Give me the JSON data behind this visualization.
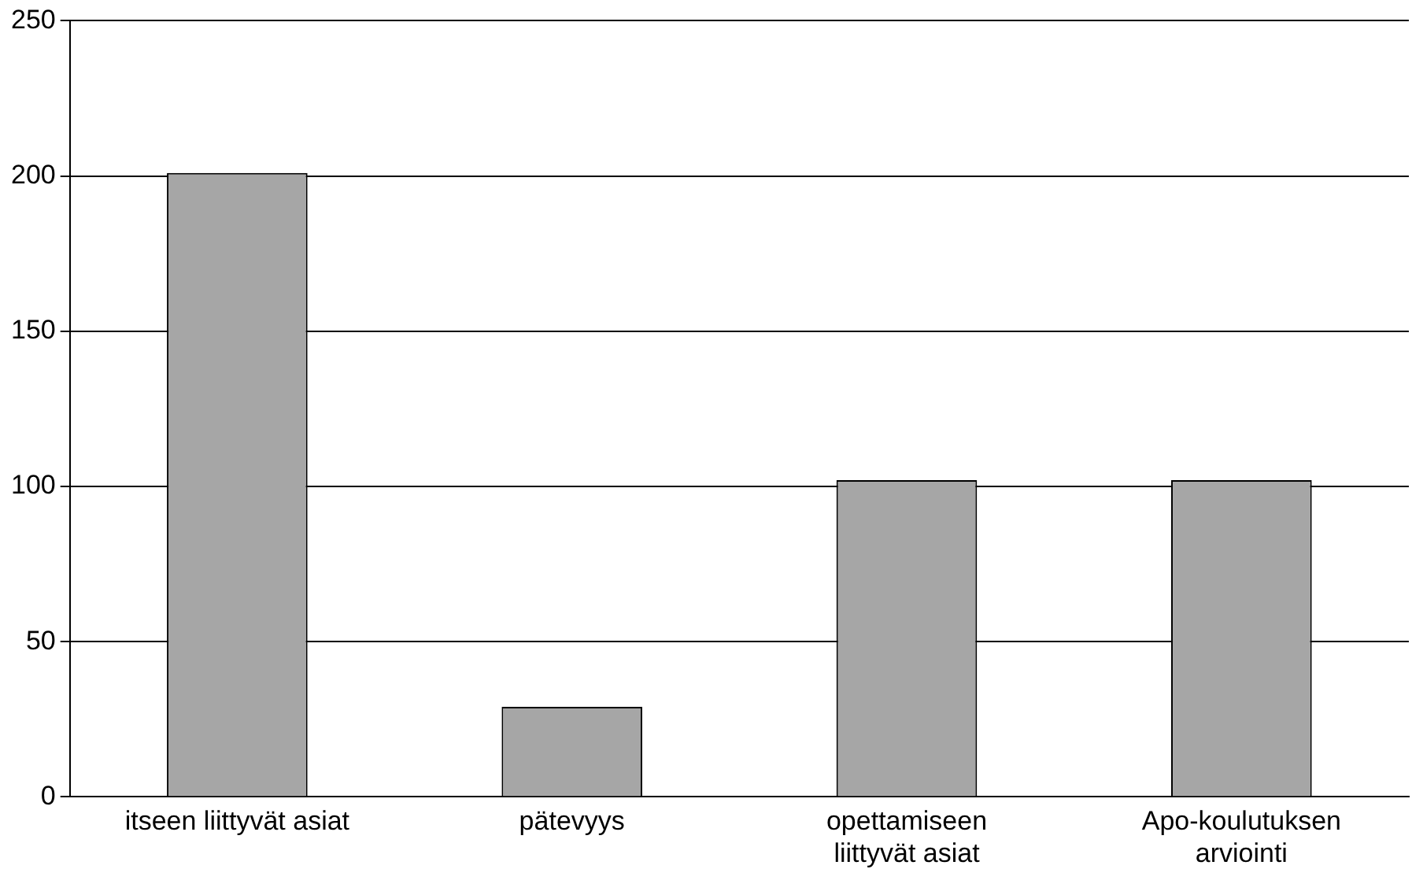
{
  "chart_data": {
    "type": "bar",
    "categories": [
      "itseen liittyvät asiat",
      "pätevyys",
      "opettamiseen liittyvät asiat",
      "Apo-koulutuksen arviointi"
    ],
    "values": [
      201,
      29,
      102,
      102
    ],
    "color": "#a6a6a6",
    "ylim": [
      0,
      250
    ],
    "yticks": [
      0,
      50,
      100,
      150,
      200,
      250
    ],
    "grid": "y"
  }
}
